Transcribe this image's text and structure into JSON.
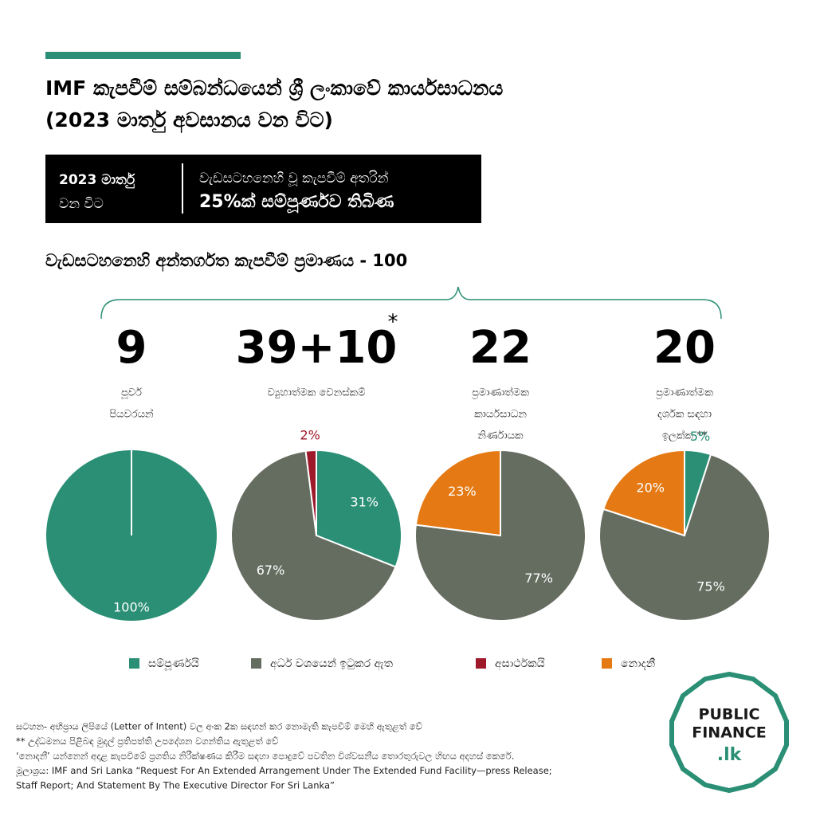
{
  "header": {
    "title_lines": [
      "IMF කැපවීම් සම්බන්ධයෙන් ශ්‍රී ලංකාවේ කාර්යසාධනය",
      "(2023 මාර්තු අවසානය වන විට)"
    ]
  },
  "banner": {
    "left_lines": [
      "2023 මාර්තු",
      "වන විට"
    ],
    "right_lines": [
      "වැඩසටහනෙහි වූ කැපවීම් අතරින්",
      "25%ක් සම්පූර්ණව තිබිණ"
    ]
  },
  "subtitle": "වැඩසටහනෙහි අන්තර්ගත කැපවීම් ප්‍රමාණය - 100",
  "chart_data": [
    {
      "type": "pie",
      "title": "9",
      "label_lines": [
        "පූර්ව",
        "පියවරයන්"
      ],
      "values": [
        100
      ],
      "value_labels": [
        "100%"
      ],
      "colors": [
        "#2a8f74"
      ]
    },
    {
      "type": "pie",
      "title": "39+10",
      "title_mark": "*",
      "label_lines": [
        "ව්‍යුහාත්මක වෙනස්කම්"
      ],
      "values": [
        31,
        67,
        2
      ],
      "value_labels": [
        "31%",
        "67%",
        "2%"
      ],
      "colors": [
        "#2a8f74",
        "#656d60",
        "#9e1a2a"
      ]
    },
    {
      "type": "pie",
      "title": "22",
      "label_lines": [
        "ප්‍රමාණාත්මක",
        "කාර්යසාධන",
        "නිර්ණායක"
      ],
      "values": [
        77,
        23
      ],
      "value_labels": [
        "77%",
        "23%"
      ],
      "colors": [
        "#656d60",
        "#e57a14"
      ]
    },
    {
      "type": "pie",
      "title": "20",
      "label_lines": [
        "ප්‍රමාණාත්මක",
        "දර්ශක සඳහා",
        "ඉලක්ක **"
      ],
      "values": [
        5,
        75,
        20
      ],
      "value_labels": [
        "5%",
        "75%",
        "20%"
      ],
      "colors": [
        "#2a8f74",
        "#656d60",
        "#e57a14"
      ]
    }
  ],
  "legend": [
    {
      "name": "සම්පූර්ණයි",
      "color": "#2a8f74"
    },
    {
      "name": "අර්ධ වශයෙන් ඉටුකර ඇත",
      "color": "#656d60"
    },
    {
      "name": "අසාර්ථකයි",
      "color": "#9e1a2a"
    },
    {
      "name": "නොදනී",
      "color": "#e57a14"
    }
  ],
  "footnotes": [
    "සටහන- අභිප්‍රාය ලිපියේ (Letter of Intent) වල අංක 2ක සඳහන් කර නොමැති කැපවීම් මෙහි ඇතුළත් වේ",
    "** උද්ධමනය පිළිබඳ මුදල් ප්‍රතිපත්ති උපදේශන වගන්තිය ඇතුළත් වේ",
    "‘නොදනී’ යන්නෙන් අදාළ කැපවීමේ ප්‍රගතිය නිරීක්ෂණය කිරීම සඳහා පොදුවේ පවතින විශ්වසනීය තොරතුරුවල හිඟය අදහස් කෙරේ.",
    "මූලාශ්‍රය: IMF and Sri Lanka “Request For An Extended Arrangement Under The Extended Fund Facility—press Release;",
    "Staff Report; And Statement By The Executive Director For Sri Lanka”"
  ],
  "logo": {
    "lines": [
      "PUBLIC",
      "FINANCE",
      ".lk"
    ]
  }
}
